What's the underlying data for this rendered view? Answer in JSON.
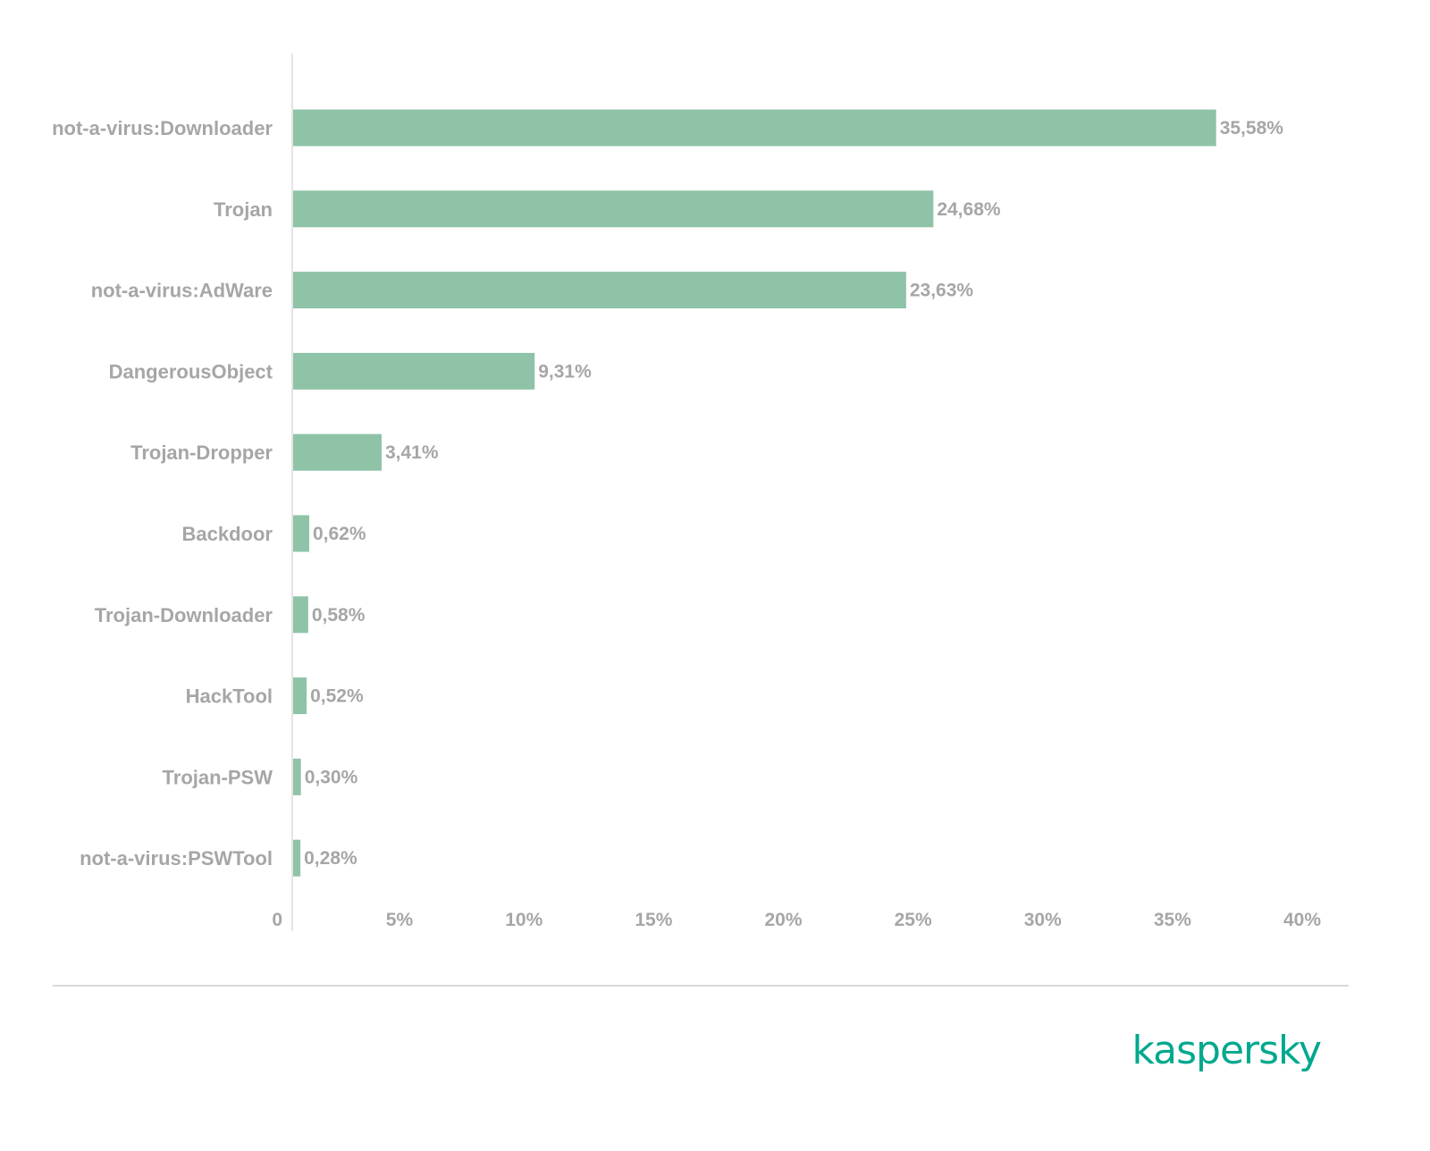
{
  "chart_data": {
    "type": "bar",
    "orientation": "horizontal",
    "title": "",
    "xlabel": "",
    "ylabel": "",
    "categories": [
      "not-a-virus:Downloader",
      "Trojan",
      "not-a-virus:AdWare",
      "DangerousObject",
      "Trojan-Dropper",
      "Backdoor",
      "Trojan-Downloader",
      "HackTool",
      "Trojan-PSW",
      "not-a-virus:PSWTool"
    ],
    "values": [
      35.58,
      24.68,
      23.63,
      9.31,
      3.41,
      0.62,
      0.58,
      0.52,
      0.3,
      0.28
    ],
    "value_labels": [
      "35,58%",
      "24,68%",
      "23,63%",
      "9,31%",
      "3,41%",
      "0,62%",
      "0,58%",
      "0,52%",
      "0,30%",
      "0,28%"
    ],
    "xlim": [
      0,
      40
    ],
    "ticks": [
      0,
      5,
      10,
      15,
      20,
      25,
      30,
      35,
      40
    ],
    "tick_labels": [
      "0",
      "5%",
      "10%",
      "15%",
      "20%",
      "25%",
      "30%",
      "35%",
      "40%"
    ],
    "grid": false,
    "bar_color": "#8fc3a7"
  },
  "logo": {
    "text": "kaspersky",
    "color": "#00a88e"
  }
}
